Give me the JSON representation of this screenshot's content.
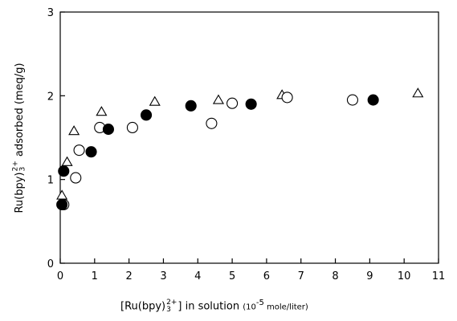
{
  "chart_data": {
    "type": "scatter",
    "xlim": [
      0,
      11
    ],
    "ylim": [
      0,
      3
    ],
    "x_ticks": [
      "0",
      "1",
      "2",
      "3",
      "4",
      "5",
      "6",
      "7",
      "8",
      "9",
      "10",
      "11"
    ],
    "y_ticks": [
      "0",
      "1",
      "2",
      "3"
    ],
    "xlabel": {
      "main": "[Ru(bpy)",
      "sup": "2+",
      "sub": "3",
      "close": "]",
      "middle": " in solution ",
      "paren_open": "(10",
      "exp": "-5",
      "unit": " mole/liter)"
    },
    "ylabel": {
      "main": "Ru(bpy)",
      "sup": "2+",
      "sub": "3",
      "rest": " adsorbed (meq/g)"
    },
    "grid": false,
    "series": [
      {
        "marker": "triangle",
        "points": [
          {
            "x": 0.05,
            "y": 0.8
          },
          {
            "x": 0.2,
            "y": 1.2
          },
          {
            "x": 0.4,
            "y": 1.57
          },
          {
            "x": 1.2,
            "y": 1.8
          },
          {
            "x": 2.75,
            "y": 1.92
          },
          {
            "x": 4.6,
            "y": 1.94
          },
          {
            "x": 6.45,
            "y": 2.0
          },
          {
            "x": 10.4,
            "y": 2.02
          }
        ]
      },
      {
        "marker": "open-circle",
        "points": [
          {
            "x": 0.1,
            "y": 0.7
          },
          {
            "x": 0.45,
            "y": 1.02
          },
          {
            "x": 0.55,
            "y": 1.35
          },
          {
            "x": 1.15,
            "y": 1.62
          },
          {
            "x": 2.1,
            "y": 1.62
          },
          {
            "x": 4.4,
            "y": 1.67
          },
          {
            "x": 5.0,
            "y": 1.91
          },
          {
            "x": 6.6,
            "y": 1.98
          },
          {
            "x": 8.5,
            "y": 1.95
          }
        ]
      },
      {
        "marker": "filled-circle",
        "points": [
          {
            "x": 0.05,
            "y": 0.7
          },
          {
            "x": 0.1,
            "y": 1.1
          },
          {
            "x": 0.9,
            "y": 1.33
          },
          {
            "x": 1.4,
            "y": 1.6
          },
          {
            "x": 2.5,
            "y": 1.77
          },
          {
            "x": 3.8,
            "y": 1.88
          },
          {
            "x": 5.55,
            "y": 1.9
          },
          {
            "x": 9.1,
            "y": 1.95
          }
        ]
      }
    ]
  }
}
